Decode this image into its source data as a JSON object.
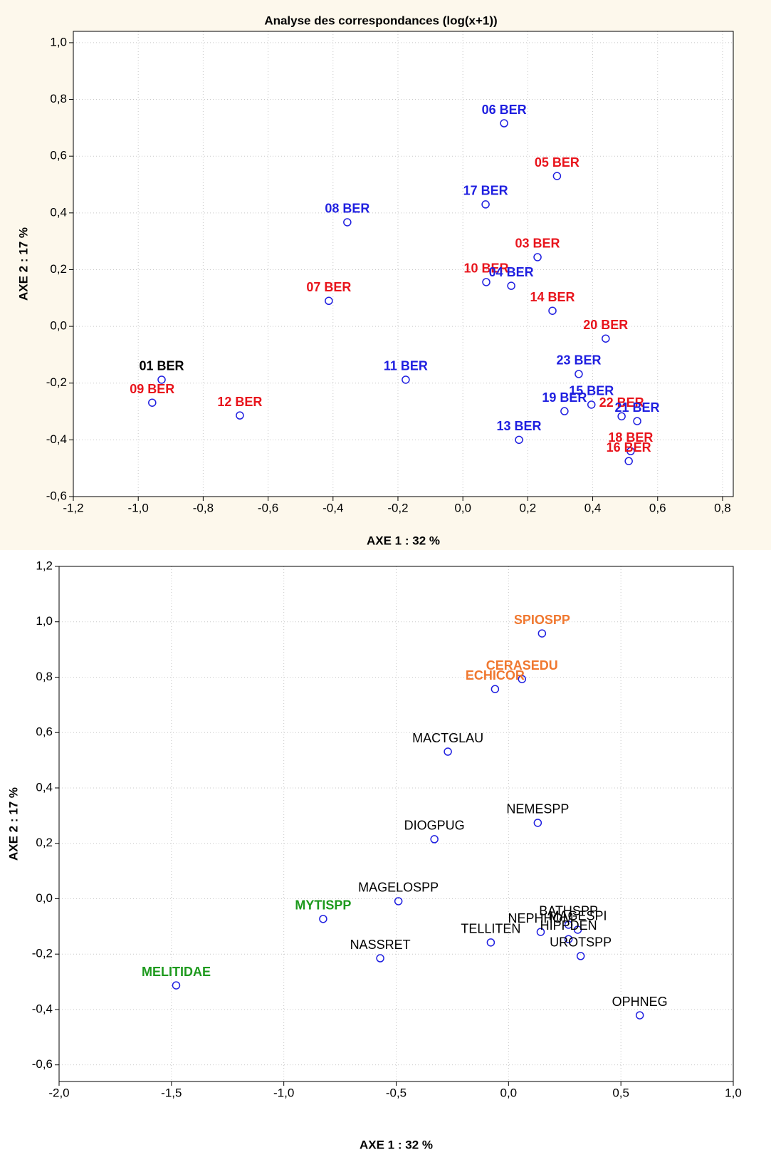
{
  "chart_data": [
    {
      "type": "scatter",
      "title": "Analyse des correspondances (log(x+1))",
      "x_label": "AXE 1 : 32 %",
      "y_label": "AXE 2 : 17 %",
      "xlim": [
        -1.2,
        0.833
      ],
      "ylim": [
        -0.6,
        1.04
      ],
      "xticks": [
        {
          "value": -1.2,
          "label": "-1,2"
        },
        {
          "value": -1.0,
          "label": "-1,0"
        },
        {
          "value": -0.8,
          "label": "-0,8"
        },
        {
          "value": -0.6,
          "label": "-0,6"
        },
        {
          "value": -0.4,
          "label": "-0,4"
        },
        {
          "value": -0.2,
          "label": "-0,2"
        },
        {
          "value": 0,
          "label": "0,0"
        },
        {
          "value": 0.2,
          "label": "0,2"
        },
        {
          "value": 0.4,
          "label": "0,4"
        },
        {
          "value": 0.6,
          "label": "0,6"
        },
        {
          "value": 0.8,
          "label": "0,8"
        }
      ],
      "yticks": [
        {
          "value": -0.6,
          "label": "-0,6"
        },
        {
          "value": -0.4,
          "label": "-0,4"
        },
        {
          "value": -0.2,
          "label": "-0,2"
        },
        {
          "value": 0,
          "label": "0,0"
        },
        {
          "value": 0.2,
          "label": "0,2"
        },
        {
          "value": 0.4,
          "label": "0,4"
        },
        {
          "value": 0.6,
          "label": "0,6"
        },
        {
          "value": 0.8,
          "label": "0,8"
        },
        {
          "value": 1.0,
          "label": "1,0"
        }
      ],
      "grid": true,
      "marker_color": "#1f1fe0",
      "points": [
        {
          "label": "06 BER",
          "x": 0.127,
          "y": 0.716,
          "color": "#1f1fe0",
          "bold": true
        },
        {
          "label": "05 BER",
          "x": 0.29,
          "y": 0.53,
          "color": "#e8141c",
          "bold": true
        },
        {
          "label": "17 BER",
          "x": 0.07,
          "y": 0.43,
          "color": "#1f1fe0",
          "bold": true
        },
        {
          "label": "08 BER",
          "x": -0.356,
          "y": 0.367,
          "color": "#1f1fe0",
          "bold": true
        },
        {
          "label": "03 BER",
          "x": 0.23,
          "y": 0.244,
          "color": "#e8141c",
          "bold": true
        },
        {
          "label": "10 BER",
          "x": 0.072,
          "y": 0.156,
          "color": "#e8141c",
          "bold": true
        },
        {
          "label": "04 BER",
          "x": 0.149,
          "y": 0.143,
          "color": "#1f1fe0",
          "bold": true
        },
        {
          "label": "07 BER",
          "x": -0.413,
          "y": 0.09,
          "color": "#e8141c",
          "bold": true
        },
        {
          "label": "14 BER",
          "x": 0.276,
          "y": 0.055,
          "color": "#e8141c",
          "bold": true
        },
        {
          "label": "20 BER",
          "x": 0.44,
          "y": -0.043,
          "color": "#e8141c",
          "bold": true
        },
        {
          "label": "23 BER",
          "x": 0.357,
          "y": -0.168,
          "color": "#1f1fe0",
          "bold": true
        },
        {
          "label": "01 BER",
          "x": -0.928,
          "y": -0.188,
          "color": "#000000",
          "bold": true
        },
        {
          "label": "11 BER",
          "x": -0.176,
          "y": -0.188,
          "color": "#1f1fe0",
          "bold": true
        },
        {
          "label": "09 BER",
          "x": -0.957,
          "y": -0.269,
          "color": "#e8141c",
          "bold": true
        },
        {
          "label": "15 BER",
          "x": 0.396,
          "y": -0.276,
          "color": "#1f1fe0",
          "bold": true
        },
        {
          "label": "19 BER",
          "x": 0.313,
          "y": -0.299,
          "color": "#1f1fe0",
          "bold": true
        },
        {
          "label": "22 BER",
          "x": 0.489,
          "y": -0.317,
          "color": "#e8141c",
          "bold": true
        },
        {
          "label": "21 BER",
          "x": 0.537,
          "y": -0.334,
          "color": "#1f1fe0",
          "bold": true
        },
        {
          "label": "12 BER",
          "x": -0.687,
          "y": -0.314,
          "color": "#e8141c",
          "bold": true
        },
        {
          "label": "13 BER",
          "x": 0.173,
          "y": -0.4,
          "color": "#1f1fe0",
          "bold": true
        },
        {
          "label": "18 BER",
          "x": 0.517,
          "y": -0.44,
          "color": "#e8141c",
          "bold": true
        },
        {
          "label": "16 BER",
          "x": 0.511,
          "y": -0.475,
          "color": "#e8141c",
          "bold": true
        }
      ]
    },
    {
      "type": "scatter",
      "x_label": "AXE 1 : 32 %",
      "y_label": "AXE 2 : 17 %",
      "xlim": [
        -2.0,
        1.0
      ],
      "ylim": [
        -0.66,
        1.2
      ],
      "xticks": [
        {
          "value": -2.0,
          "label": "-2,0"
        },
        {
          "value": -1.5,
          "label": "-1,5"
        },
        {
          "value": -1.0,
          "label": "-1,0"
        },
        {
          "value": -0.5,
          "label": "-0,5"
        },
        {
          "value": 0,
          "label": "0,0"
        },
        {
          "value": 0.5,
          "label": "0,5"
        },
        {
          "value": 1.0,
          "label": "1,0"
        }
      ],
      "yticks": [
        {
          "value": -0.6,
          "label": "-0,6"
        },
        {
          "value": -0.4,
          "label": "-0,4"
        },
        {
          "value": -0.2,
          "label": "-0,2"
        },
        {
          "value": 0,
          "label": "0,0"
        },
        {
          "value": 0.2,
          "label": "0,2"
        },
        {
          "value": 0.4,
          "label": "0,4"
        },
        {
          "value": 0.6,
          "label": "0,6"
        },
        {
          "value": 0.8,
          "label": "0,8"
        },
        {
          "value": 1.0,
          "label": "1,0"
        },
        {
          "value": 1.2,
          "label": "1,2"
        }
      ],
      "grid": true,
      "marker_color": "#1f1fe0",
      "points": [
        {
          "label": "SPIOSPP",
          "x": 0.149,
          "y": 0.958,
          "color": "#f07830",
          "bold": true
        },
        {
          "label": "CERASEDU",
          "x": 0.06,
          "y": 0.793,
          "color": "#f07830",
          "bold": true
        },
        {
          "label": "ECHICOR",
          "x": -0.06,
          "y": 0.757,
          "color": "#f07830",
          "bold": true
        },
        {
          "label": "MACTGLAU",
          "x": -0.27,
          "y": 0.531,
          "color": "#000000",
          "bold": false
        },
        {
          "label": "NEMESPP",
          "x": 0.13,
          "y": 0.274,
          "color": "#000000",
          "bold": false
        },
        {
          "label": "DIOGPUG",
          "x": -0.33,
          "y": 0.215,
          "color": "#000000",
          "bold": false
        },
        {
          "label": "MAGELOSPP",
          "x": -0.49,
          "y": -0.009,
          "color": "#000000",
          "bold": false
        },
        {
          "label": "MYTISPP",
          "x": -0.825,
          "y": -0.073,
          "color": "#1e9a1e",
          "bold": true
        },
        {
          "label": "BATHSPP",
          "x": 0.267,
          "y": -0.094,
          "color": "#000000",
          "bold": false
        },
        {
          "label": "MAGESPI",
          "x": 0.308,
          "y": -0.112,
          "color": "#000000",
          "bold": false
        },
        {
          "label": "NEPHHOM",
          "x": 0.143,
          "y": -0.12,
          "color": "#000000",
          "bold": false
        },
        {
          "label": "HIPPDEN",
          "x": 0.267,
          "y": -0.146,
          "color": "#000000",
          "bold": false
        },
        {
          "label": "TELLITEN",
          "x": -0.079,
          "y": -0.158,
          "color": "#000000",
          "bold": false
        },
        {
          "label": "UROTSPP",
          "x": 0.321,
          "y": -0.207,
          "color": "#000000",
          "bold": false
        },
        {
          "label": "NASSRET",
          "x": -0.571,
          "y": -0.215,
          "color": "#000000",
          "bold": false
        },
        {
          "label": "MELITIDAE",
          "x": -1.479,
          "y": -0.313,
          "color": "#1e9a1e",
          "bold": true
        },
        {
          "label": "OPHNEG",
          "x": 0.584,
          "y": -0.421,
          "color": "#000000",
          "bold": false
        }
      ]
    }
  ]
}
